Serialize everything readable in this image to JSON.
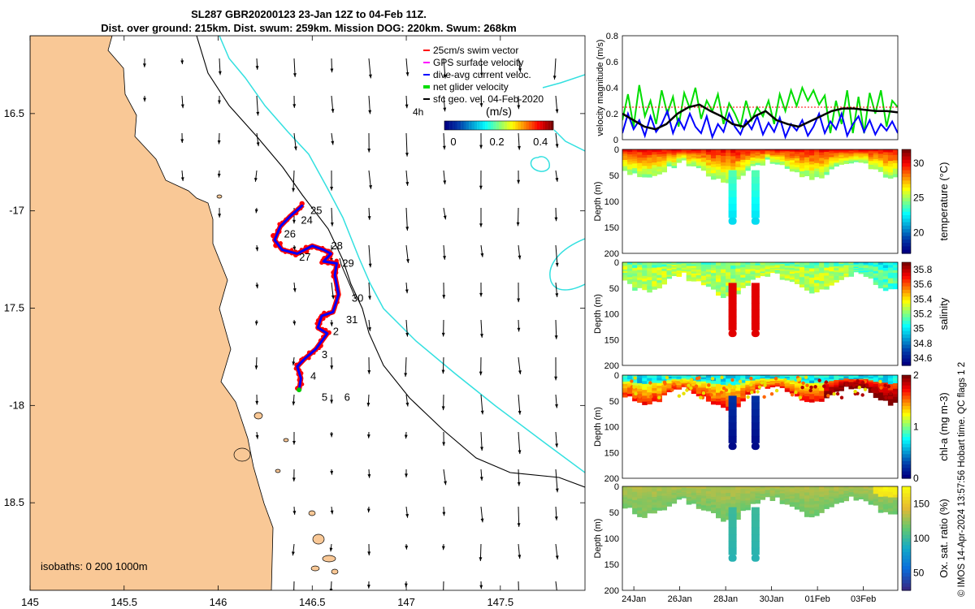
{
  "title_line1": "SL287 GBR20200123 23-Jan 12Z to 04-Feb 11Z.",
  "title_line2": "Dist. over ground: 215km. Dist. swum: 259km. Mission DOG: 220km. Swum: 268km",
  "copyright": "© IMOS 14-Apr-2024 13:57:56 Hobart time. QC flags 1  2",
  "colors": {
    "land": "#f9c896",
    "coast": "#000000",
    "isobath200": "#000000",
    "isobath1000": "#33e0e0",
    "track_red": "#ff0000",
    "track_blue": "#0000ff",
    "arrow": "#000000"
  },
  "chart_data": [
    {
      "type": "map",
      "name": "glider-track-map",
      "xlim": [
        145,
        147.95
      ],
      "ylim": [
        -18.95,
        -16.1
      ],
      "xticks": [
        145,
        145.5,
        146,
        146.5,
        147,
        147.5
      ],
      "xtick_labels": [
        "145",
        "145.5",
        "146",
        "146.5",
        "147",
        "147.5"
      ],
      "yticks": [
        -16.5,
        -17,
        -17.5,
        -18,
        -18.5
      ],
      "ytick_labels": [
        "16.5",
        "-17",
        "17.5",
        "-18",
        "18.5"
      ],
      "legend": {
        "placement": "top-right",
        "items": [
          {
            "label": "25cm/s swim vector",
            "color": "#ff0000"
          },
          {
            "label": "GPS surface velocity",
            "color": "#ff00ff"
          },
          {
            "label": "dive-avg current veloc.",
            "color": "#0000ff"
          },
          {
            "label": "net glider velocity",
            "color": "#00dd00"
          },
          {
            "label": "sfc geo. vel. 04-Feb-2020",
            "color": "#000000"
          }
        ]
      },
      "vector_scale_label": "4h",
      "colorbar": {
        "title": "(m/s)",
        "range": [
          0,
          0.5
        ],
        "ticks": [
          0,
          0.2,
          0.4
        ],
        "tick_labels": [
          "0",
          "0.2",
          "0.4"
        ]
      },
      "isobath_label": "isobaths: 0   200  1000m",
      "day_labels": [
        {
          "text": "25",
          "lon": 146.49,
          "lat": -17.0
        },
        {
          "text": "24",
          "lon": 146.44,
          "lat": -17.05
        },
        {
          "text": "26",
          "lon": 146.35,
          "lat": -17.12
        },
        {
          "text": "28",
          "lon": 146.6,
          "lat": -17.18
        },
        {
          "text": "27",
          "lon": 146.43,
          "lat": -17.24
        },
        {
          "text": "29",
          "lon": 146.66,
          "lat": -17.27
        },
        {
          "text": "30",
          "lon": 146.71,
          "lat": -17.45
        },
        {
          "text": "31",
          "lon": 146.68,
          "lat": -17.56
        },
        {
          "text": "2",
          "lon": 146.61,
          "lat": -17.62
        },
        {
          "text": "3",
          "lon": 146.55,
          "lat": -17.74
        },
        {
          "text": "4",
          "lon": 146.49,
          "lat": -17.85
        },
        {
          "text": "5",
          "lon": 146.55,
          "lat": -17.96
        },
        {
          "text": "6",
          "lon": 146.67,
          "lat": -17.96
        }
      ],
      "track": [
        [
          146.45,
          -16.97
        ],
        [
          146.38,
          -17.03
        ],
        [
          146.33,
          -17.08
        ],
        [
          146.3,
          -17.15
        ],
        [
          146.34,
          -17.2
        ],
        [
          146.42,
          -17.22
        ],
        [
          146.5,
          -17.18
        ],
        [
          146.56,
          -17.2
        ],
        [
          146.6,
          -17.22
        ],
        [
          146.56,
          -17.26
        ],
        [
          146.63,
          -17.27
        ],
        [
          146.62,
          -17.33
        ],
        [
          146.64,
          -17.43
        ],
        [
          146.61,
          -17.52
        ],
        [
          146.55,
          -17.54
        ],
        [
          146.53,
          -17.6
        ],
        [
          146.58,
          -17.63
        ],
        [
          146.52,
          -17.71
        ],
        [
          146.46,
          -17.76
        ],
        [
          146.42,
          -17.8
        ],
        [
          146.44,
          -17.86
        ],
        [
          146.43,
          -17.92
        ]
      ]
    },
    {
      "type": "line",
      "name": "velocity-magnitude",
      "ylabel": "velocity magnitude (m/s)",
      "ylim": [
        0,
        0.8
      ],
      "yticks": [
        0,
        0.2,
        0.4,
        0.6,
        0.8
      ],
      "ytick_labels": [
        "0",
        "0.2",
        "0.4",
        "0.6",
        "0.8"
      ],
      "xlim": [
        23.5,
        35.5
      ],
      "series": [
        {
          "name": "net glider velocity",
          "color": "#00dd00",
          "width": 2,
          "values": [
            0.15,
            0.35,
            0.1,
            0.42,
            0.18,
            0.3,
            0.12,
            0.38,
            0.2,
            0.33,
            0.1,
            0.36,
            0.24,
            0.4,
            0.16,
            0.3,
            0.22,
            0.35,
            0.12,
            0.28,
            0.2,
            0.1,
            0.3,
            0.15,
            0.25,
            0.18,
            0.3,
            0.12,
            0.35,
            0.22,
            0.38,
            0.26,
            0.4,
            0.3,
            0.38,
            0.27,
            0.34,
            0.05,
            0.3,
            0.12,
            0.38,
            0.05,
            0.33,
            0.05,
            0.36,
            0.2,
            0.38,
            0.1,
            0.3,
            0.25
          ]
        },
        {
          "name": "dive-avg current",
          "color": "#0000ff",
          "width": 2,
          "values": [
            0.05,
            0.2,
            0.08,
            0.15,
            0.03,
            0.18,
            0.06,
            0.12,
            0.22,
            0.05,
            0.16,
            0.08,
            0.2,
            0.1,
            0.05,
            0.18,
            0.02,
            0.12,
            0.06,
            0.2,
            0.1,
            0.04,
            0.15,
            0.08,
            0.18,
            0.04,
            0.13,
            0.06,
            0.17,
            0.02,
            0.12,
            0.07,
            0.15,
            0.03,
            0.1,
            0.2,
            0.05,
            0.14,
            0.08,
            0.2,
            0.03,
            0.12,
            0.18,
            0.06,
            0.15,
            0.04,
            0.12,
            0.07,
            0.14,
            0.05
          ]
        },
        {
          "name": "swim speed",
          "color": "#ff0000",
          "width": 1,
          "dashed": true,
          "values": [
            0.25,
            0.25,
            0.25,
            0.25,
            0.25,
            0.25,
            0.25,
            0.25,
            0.25,
            0.25
          ]
        },
        {
          "name": "surface geostrophic",
          "color": "#000000",
          "width": 2.5,
          "values": [
            0.2,
            0.15,
            0.1,
            0.08,
            0.12,
            0.2,
            0.25,
            0.27,
            0.22,
            0.18,
            0.12,
            0.1,
            0.18,
            0.22,
            0.15,
            0.12,
            0.1,
            0.14,
            0.18,
            0.22,
            0.24,
            0.24,
            0.23,
            0.22,
            0.22,
            0.21
          ]
        }
      ]
    },
    {
      "type": "heatmap",
      "name": "temperature-section",
      "ylabel": "Depth (m)",
      "colorbar_label": "temperature (°C)",
      "ylim": [
        0,
        200
      ],
      "yticks": [
        0,
        50,
        100,
        150,
        200
      ],
      "ytick_labels": [
        "0",
        "50",
        "100",
        "150",
        "200"
      ],
      "crange": [
        17,
        32
      ],
      "cticks": [
        20,
        25,
        30
      ],
      "ctick_labels": [
        "20",
        "25",
        "30"
      ]
    },
    {
      "type": "heatmap",
      "name": "salinity-section",
      "ylabel": "Depth (m)",
      "colorbar_label": "salinity",
      "ylim": [
        0,
        200
      ],
      "yticks": [
        0,
        50,
        100,
        150,
        200
      ],
      "ytick_labels": [
        "0",
        "50",
        "100",
        "150",
        "200"
      ],
      "crange": [
        34.5,
        35.9
      ],
      "cticks": [
        34.6,
        34.8,
        35,
        35.2,
        35.4,
        35.6,
        35.8
      ],
      "ctick_labels": [
        "34.6",
        "34.8",
        "35",
        "35.2",
        "35.4",
        "35.6",
        "35.8"
      ]
    },
    {
      "type": "heatmap",
      "name": "chlorophyll-section",
      "ylabel": "Depth (m)",
      "colorbar_label": "chl-a (mg m-3)",
      "ylim": [
        0,
        200
      ],
      "yticks": [
        0,
        50,
        100,
        150,
        200
      ],
      "ytick_labels": [
        "0",
        "50",
        "100",
        "150",
        "200"
      ],
      "crange": [
        0,
        2
      ],
      "cticks": [
        0,
        1,
        2
      ],
      "ctick_labels": [
        "0",
        "1",
        "2"
      ]
    },
    {
      "type": "heatmap",
      "name": "oxygen-section",
      "ylabel": "Depth (m)",
      "colorbar_label": "Ox. sat. ratio (%)",
      "ylim": [
        0,
        200
      ],
      "yticks": [
        0,
        50,
        100,
        150,
        200
      ],
      "ytick_labels": [
        "0",
        "50",
        "100",
        "150",
        "200"
      ],
      "crange": [
        25,
        175
      ],
      "cticks": [
        50,
        100,
        150
      ],
      "ctick_labels": [
        "50",
        "100",
        "150"
      ],
      "xticks": [
        24,
        26,
        28,
        30,
        32,
        34
      ],
      "xtick_labels": [
        "24Jan",
        "26Jan",
        "28Jan",
        "30Jan",
        "01Feb",
        "03Feb"
      ]
    }
  ]
}
